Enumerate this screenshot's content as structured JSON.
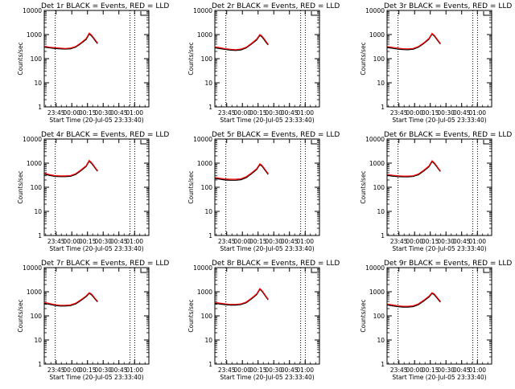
{
  "chart_data": {
    "type": "line",
    "colors": {
      "events": "#000000",
      "lld": "#ff0000"
    },
    "y_scale": "log",
    "ylim": [
      1,
      10000
    ],
    "ylabel": "Counts/sec",
    "xlabel": "Start Time (20-Jul-05 23:33:40)",
    "x_ticks": [
      "23:45",
      "00:00",
      "00:15",
      "00:30",
      "00:45",
      "01:00"
    ],
    "y_ticks": [
      "1",
      "10",
      "100",
      "1000",
      "10000"
    ],
    "x_range_minutes": [
      0,
      100
    ],
    "x_tick_minutes": [
      11.33,
      26.33,
      41.33,
      56.33,
      71.33,
      86.33
    ],
    "vlines_minutes": [
      10.5,
      82.0,
      86.5
    ],
    "legend_marker": "top-right",
    "panels": [
      {
        "title": "Det 1r BLACK = Events, RED = LLD",
        "series": [
          {
            "color": "events",
            "x": [
              0,
              5,
              10,
              15,
              20,
              25,
              30,
              35,
              40,
              43,
              45,
              47,
              49,
              51
            ],
            "y": [
              300,
              280,
              265,
              255,
              250,
              255,
              300,
              420,
              620,
              1050,
              900,
              700,
              530,
              420
            ]
          },
          {
            "color": "lld",
            "x": [
              0,
              5,
              10,
              15,
              20,
              25,
              30,
              35,
              40,
              43,
              45,
              47,
              49,
              51
            ],
            "y": [
              330,
              300,
              285,
              275,
              265,
              275,
              320,
              450,
              680,
              1150,
              980,
              760,
              580,
              450
            ]
          }
        ]
      },
      {
        "title": "Det 2r BLACK = Events, RED = LLD",
        "series": [
          {
            "color": "events",
            "x": [
              0,
              5,
              10,
              15,
              20,
              25,
              30,
              35,
              40,
              43,
              45,
              47,
              49,
              51
            ],
            "y": [
              280,
              260,
              240,
              225,
              220,
              230,
              280,
              400,
              600,
              920,
              800,
              620,
              470,
              370
            ]
          },
          {
            "color": "lld",
            "x": [
              0,
              5,
              10,
              15,
              20,
              25,
              30,
              35,
              40,
              43,
              45,
              47,
              49,
              51
            ],
            "y": [
              310,
              285,
              260,
              245,
              235,
              250,
              300,
              430,
              650,
              1000,
              870,
              680,
              510,
              400
            ]
          }
        ]
      },
      {
        "title": "Det 3r BLACK = Events, RED = LLD",
        "series": [
          {
            "color": "events",
            "x": [
              0,
              5,
              10,
              15,
              20,
              25,
              30,
              35,
              40,
              43,
              45,
              47,
              49,
              51
            ],
            "y": [
              290,
              270,
              250,
              240,
              235,
              245,
              300,
              420,
              640,
              1050,
              880,
              680,
              520,
              400
            ]
          },
          {
            "color": "lld",
            "x": [
              0,
              5,
              10,
              15,
              20,
              25,
              30,
              35,
              40,
              43,
              45,
              47,
              49,
              51
            ],
            "y": [
              320,
              295,
              275,
              260,
              255,
              265,
              320,
              450,
              690,
              1120,
              950,
              730,
              560,
              430
            ]
          }
        ]
      },
      {
        "title": "Det 4r BLACK = Events, RED = LLD",
        "series": [
          {
            "color": "events",
            "x": [
              0,
              5,
              10,
              15,
              20,
              25,
              30,
              35,
              40,
              43,
              45,
              47,
              49,
              51
            ],
            "y": [
              350,
              310,
              285,
              275,
              275,
              285,
              340,
              480,
              720,
              1200,
              1000,
              780,
              590,
              460
            ]
          },
          {
            "color": "lld",
            "x": [
              0,
              5,
              10,
              15,
              20,
              25,
              30,
              35,
              40,
              43,
              45,
              47,
              49,
              51
            ],
            "y": [
              380,
              335,
              305,
              295,
              295,
              305,
              365,
              520,
              780,
              1300,
              1080,
              840,
              630,
              490
            ]
          }
        ]
      },
      {
        "title": "Det 5r BLACK = Events, RED = LLD",
        "series": [
          {
            "color": "events",
            "x": [
              0,
              5,
              10,
              15,
              20,
              25,
              30,
              35,
              40,
              43,
              45,
              47,
              49,
              51
            ],
            "y": [
              230,
              215,
              200,
              195,
              195,
              205,
              250,
              360,
              540,
              860,
              760,
              580,
              440,
              340
            ]
          },
          {
            "color": "lld",
            "x": [
              0,
              5,
              10,
              15,
              20,
              25,
              30,
              35,
              40,
              43,
              45,
              47,
              49,
              51
            ],
            "y": [
              255,
              235,
              220,
              215,
              215,
              225,
              275,
              390,
              590,
              940,
              820,
              630,
              480,
              370
            ]
          }
        ]
      },
      {
        "title": "Det 6r BLACK = Events, RED = LLD",
        "series": [
          {
            "color": "events",
            "x": [
              0,
              5,
              10,
              15,
              20,
              25,
              30,
              35,
              40,
              43,
              45,
              47,
              49,
              51
            ],
            "y": [
              310,
              290,
              275,
              270,
              270,
              280,
              330,
              470,
              700,
              1150,
              980,
              760,
              580,
              450
            ]
          },
          {
            "color": "lld",
            "x": [
              0,
              5,
              10,
              15,
              20,
              25,
              30,
              35,
              40,
              43,
              45,
              47,
              49,
              51
            ],
            "y": [
              340,
              315,
              300,
              290,
              290,
              300,
              355,
              505,
              760,
              1250,
              1060,
              820,
              620,
              480
            ]
          }
        ]
      },
      {
        "title": "Det 7r BLACK = Events, RED = LLD",
        "series": [
          {
            "color": "events",
            "x": [
              0,
              5,
              10,
              15,
              20,
              25,
              30,
              35,
              40,
              43,
              45,
              47,
              49,
              51
            ],
            "y": [
              330,
              300,
              270,
              255,
              255,
              265,
              310,
              430,
              620,
              850,
              760,
              600,
              470,
              380
            ]
          },
          {
            "color": "lld",
            "x": [
              0,
              5,
              10,
              15,
              20,
              25,
              30,
              35,
              40,
              43,
              45,
              47,
              49,
              51
            ],
            "y": [
              360,
              325,
              290,
              275,
              275,
              285,
              335,
              465,
              670,
              920,
              820,
              650,
              500,
              410
            ]
          }
        ]
      },
      {
        "title": "Det 8r BLACK = Events, RED = LLD",
        "series": [
          {
            "color": "events",
            "x": [
              0,
              5,
              10,
              15,
              20,
              25,
              30,
              35,
              40,
              43,
              45,
              47,
              49,
              51
            ],
            "y": [
              330,
              310,
              290,
              280,
              280,
              295,
              350,
              500,
              760,
              1250,
              1050,
              800,
              600,
              460
            ]
          },
          {
            "color": "lld",
            "x": [
              0,
              5,
              10,
              15,
              20,
              25,
              30,
              35,
              40,
              43,
              45,
              47,
              49,
              51
            ],
            "y": [
              360,
              335,
              315,
              300,
              300,
              315,
              375,
              540,
              820,
              1350,
              1130,
              860,
              640,
              490
            ]
          }
        ]
      },
      {
        "title": "Det 9r BLACK = Events, RED = LLD",
        "series": [
          {
            "color": "events",
            "x": [
              0,
              5,
              10,
              15,
              20,
              25,
              30,
              35,
              40,
              43,
              45,
              47,
              49,
              51
            ],
            "y": [
              280,
              260,
              240,
              230,
              230,
              240,
              290,
              410,
              600,
              850,
              760,
              600,
              470,
              370
            ]
          },
          {
            "color": "lld",
            "x": [
              0,
              5,
              10,
              15,
              20,
              25,
              30,
              35,
              40,
              43,
              45,
              47,
              49,
              51
            ],
            "y": [
              310,
              285,
              265,
              250,
              250,
              262,
              315,
              445,
              650,
              920,
              820,
              650,
              505,
              400
            ]
          }
        ]
      }
    ]
  }
}
